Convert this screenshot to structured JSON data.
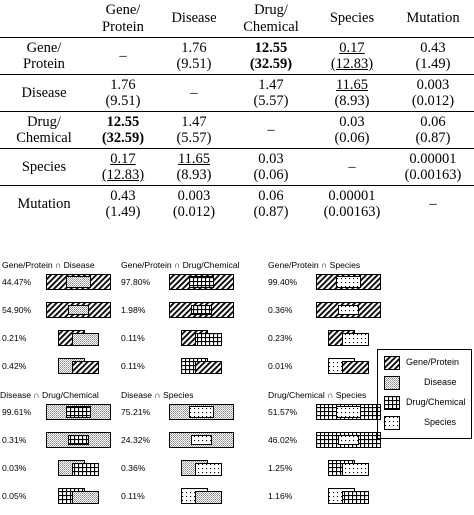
{
  "table": {
    "headers": [
      [
        "Gene/",
        "Protein"
      ],
      [
        "Disease"
      ],
      [
        "Drug/",
        "Chemical"
      ],
      [
        "Species"
      ],
      [
        "Mutation"
      ]
    ],
    "rows": [
      {
        "label": [
          "Gene/",
          "Protein"
        ],
        "cells": [
          {
            "lines": [
              "–"
            ]
          },
          {
            "lines": [
              "1.76",
              "(9.51)"
            ]
          },
          {
            "lines": [
              "12.55",
              "(32.59)"
            ],
            "style": "bold"
          },
          {
            "lines": [
              "0.17",
              "(12.83)"
            ],
            "style": "underline"
          },
          {
            "lines": [
              "0.43",
              "(1.49)"
            ]
          }
        ]
      },
      {
        "label": [
          "Disease"
        ],
        "cells": [
          {
            "lines": [
              "1.76",
              "(9.51)"
            ]
          },
          {
            "lines": [
              "–"
            ]
          },
          {
            "lines": [
              "1.47",
              "(5.57)"
            ]
          },
          {
            "lines": [
              "11.65",
              "(8.93)"
            ],
            "style": "underline-first"
          },
          {
            "lines": [
              "0.003",
              "(0.012)"
            ]
          }
        ]
      },
      {
        "label": [
          "Drug/",
          "Chemical"
        ],
        "cells": [
          {
            "lines": [
              "12.55",
              "(32.59)"
            ],
            "style": "bold"
          },
          {
            "lines": [
              "1.47",
              "(5.57)"
            ]
          },
          {
            "lines": [
              "–"
            ]
          },
          {
            "lines": [
              "0.03",
              "(0.06)"
            ]
          },
          {
            "lines": [
              "0.06",
              "(0.87)"
            ]
          }
        ]
      },
      {
        "label": [
          "Species"
        ],
        "cells": [
          {
            "lines": [
              "0.17",
              "(12.83)"
            ],
            "style": "underline"
          },
          {
            "lines": [
              "11.65",
              "(8.93)"
            ],
            "style": "underline-first"
          },
          {
            "lines": [
              "0.03",
              "(0.06)"
            ]
          },
          {
            "lines": [
              "–"
            ]
          },
          {
            "lines": [
              "0.00001",
              "(0.00163)"
            ]
          }
        ]
      },
      {
        "label": [
          "Mutation"
        ],
        "cells": [
          {
            "lines": [
              "0.43",
              "(1.49)"
            ]
          },
          {
            "lines": [
              "0.003",
              "(0.012)"
            ]
          },
          {
            "lines": [
              "0.06",
              "(0.87)"
            ]
          },
          {
            "lines": [
              "0.00001",
              "(0.00163)"
            ]
          },
          {
            "lines": [
              "–"
            ]
          }
        ]
      }
    ]
  },
  "panels": [
    {
      "title": "Gene/Protein ∩ Disease",
      "a": "gene",
      "b": "disease",
      "rows": [
        {
          "pct": "44.47%",
          "level": 0.4447
        },
        {
          "pct": "54.90%",
          "level": 0.549
        },
        {
          "pct": "0.21%",
          "level": 0.0021
        },
        {
          "pct": "0.42%",
          "level": 0.0042
        }
      ]
    },
    {
      "title": "Gene/Protein ∩ Drug/Chemical",
      "a": "gene",
      "b": "drug",
      "rows": [
        {
          "pct": "97.80%",
          "level": 0.978
        },
        {
          "pct": "1.98%",
          "level": 0.0198
        },
        {
          "pct": "0.11%",
          "level": 0.0011
        },
        {
          "pct": "0.11%",
          "level": 0.0011
        }
      ]
    },
    {
      "title": "Gene/Protein ∩ Species",
      "a": "gene",
      "b": "species",
      "rows": [
        {
          "pct": "99.40%",
          "level": 0.994
        },
        {
          "pct": "0.36%",
          "level": 0.0036
        },
        {
          "pct": "0.23%",
          "level": 0.0023
        },
        {
          "pct": "0.01%",
          "level": 0.0001
        }
      ]
    },
    {
      "title": "Disease ∩ Drug/Chemical",
      "a": "disease",
      "b": "drug",
      "rows": [
        {
          "pct": "99.61%",
          "level": 0.9961
        },
        {
          "pct": "0.31%",
          "level": 0.0031
        },
        {
          "pct": "0.03%",
          "level": 0.0003
        },
        {
          "pct": "0.05%",
          "level": 0.0005
        }
      ]
    },
    {
      "title": "Disease ∩ Species",
      "a": "disease",
      "b": "species",
      "rows": [
        {
          "pct": "75.21%",
          "level": 0.7521
        },
        {
          "pct": "24.32%",
          "level": 0.2432
        },
        {
          "pct": "0.36%",
          "level": 0.0036
        },
        {
          "pct": "0.11%",
          "level": 0.0011
        }
      ]
    },
    {
      "title": "Drug/Chemical ∩ Species",
      "a": "drug",
      "b": "species",
      "rows": [
        {
          "pct": "51.57%",
          "level": 0.5157
        },
        {
          "pct": "46.02%",
          "level": 0.4602
        },
        {
          "pct": "1.25%",
          "level": 0.0125
        },
        {
          "pct": "1.16%",
          "level": 0.0116
        }
      ]
    }
  ],
  "legend": [
    {
      "type": "gene",
      "label": "Gene/Protein"
    },
    {
      "type": "disease",
      "label": "Disease"
    },
    {
      "type": "drug",
      "label": "Drug/Chemical"
    },
    {
      "type": "species",
      "label": "Species"
    }
  ]
}
